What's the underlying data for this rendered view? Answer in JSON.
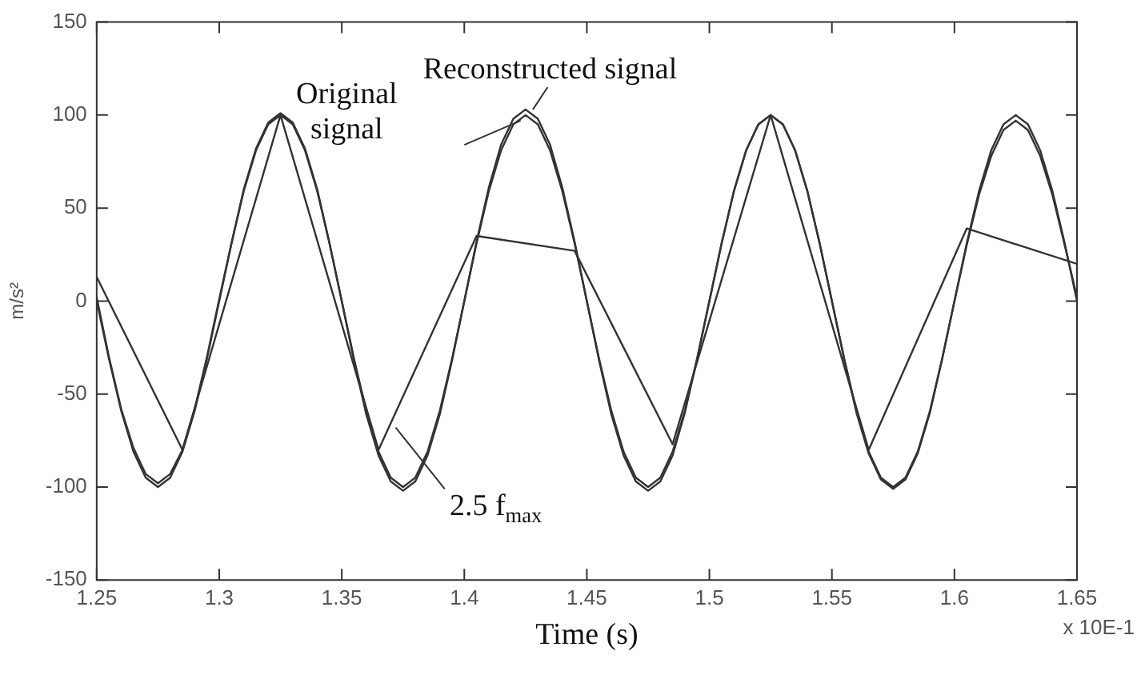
{
  "chart_data": {
    "type": "line",
    "legend": "top",
    "xlabel": "Time (s)",
    "ylabel": "m/s²",
    "annotations": [
      "x 10E-1"
    ],
    "x": [
      1.25,
      1.255,
      1.26,
      1.265,
      1.27,
      1.275,
      1.28,
      1.285,
      1.29,
      1.295,
      1.3,
      1.305,
      1.31,
      1.315,
      1.32,
      1.325,
      1.33,
      1.335,
      1.34,
      1.345,
      1.35,
      1.355,
      1.36,
      1.365,
      1.37,
      1.375,
      1.38,
      1.385,
      1.39,
      1.395,
      1.4,
      1.405,
      1.41,
      1.415,
      1.42,
      1.425,
      1.43,
      1.435,
      1.44,
      1.445,
      1.45,
      1.455,
      1.46,
      1.465,
      1.47,
      1.475,
      1.48,
      1.485,
      1.49,
      1.495,
      1.5,
      1.505,
      1.51,
      1.515,
      1.52,
      1.525,
      1.53,
      1.535,
      1.54,
      1.545,
      1.55,
      1.555,
      1.56,
      1.565,
      1.57,
      1.575,
      1.58,
      1.585,
      1.59,
      1.595,
      1.6,
      1.605,
      1.61,
      1.615,
      1.62,
      1.625,
      1.63,
      1.635,
      1.64,
      1.645,
      1.65
    ],
    "xlim": [
      1.25,
      1.65
    ],
    "xticks": [
      1.25,
      1.3,
      1.35,
      1.4,
      1.45,
      1.5,
      1.55,
      1.6,
      1.65
    ],
    "ylim": [
      -150,
      150
    ],
    "yticks": [
      -150,
      -100,
      -50,
      0,
      50,
      100,
      150
    ],
    "series": [
      {
        "name": "Original signal",
        "color": "#333333",
        "values": [
          0,
          -31,
          -59,
          -81,
          -95,
          -100,
          -95,
          -81,
          -59,
          -31,
          0,
          31,
          59,
          81,
          95,
          100,
          95,
          81,
          59,
          31,
          0,
          -31,
          -59,
          -81,
          -95,
          -100,
          -95,
          -81,
          -59,
          -31,
          0,
          31,
          59,
          81,
          95,
          100,
          95,
          81,
          59,
          31,
          0,
          -31,
          -59,
          -81,
          -95,
          -100,
          -95,
          -81,
          -59,
          -31,
          0,
          31,
          59,
          81,
          95,
          100,
          95,
          81,
          59,
          31,
          0,
          -31,
          -59,
          -81,
          -95,
          -100,
          -95,
          -81,
          -59,
          -31,
          0,
          31,
          59,
          81,
          95,
          100,
          95,
          81,
          59,
          31,
          0
        ]
      },
      {
        "name": "Reconstructed signal",
        "color": "#333333",
        "values": [
          2,
          -30,
          -58,
          -79,
          -93,
          -98,
          -93,
          -80,
          -58,
          -30,
          1,
          31,
          60,
          82,
          96,
          101,
          96,
          82,
          60,
          31,
          0,
          -32,
          -61,
          -83,
          -97,
          -102,
          -97,
          -83,
          -61,
          -32,
          0,
          32,
          61,
          84,
          98,
          103,
          98,
          84,
          61,
          32,
          0,
          -32,
          -61,
          -83,
          -97,
          -102,
          -97,
          -83,
          -60,
          -31,
          0,
          31,
          59,
          81,
          95,
          100,
          95,
          81,
          59,
          31,
          0,
          -31,
          -60,
          -82,
          -96,
          -101,
          -96,
          -82,
          -60,
          -31,
          0,
          30,
          57,
          78,
          92,
          97,
          92,
          78,
          57,
          30,
          2
        ]
      },
      {
        "name": "2.5 f$_{max}$",
        "color": "#333333",
        "x": [
          1.25,
          1.285,
          1.325,
          1.365,
          1.405,
          1.445,
          1.485,
          1.525,
          1.565,
          1.605,
          1.65
        ],
        "values": [
          13,
          -80,
          100,
          -80,
          35,
          27,
          -77,
          100,
          -80,
          39,
          20
        ]
      }
    ]
  }
}
